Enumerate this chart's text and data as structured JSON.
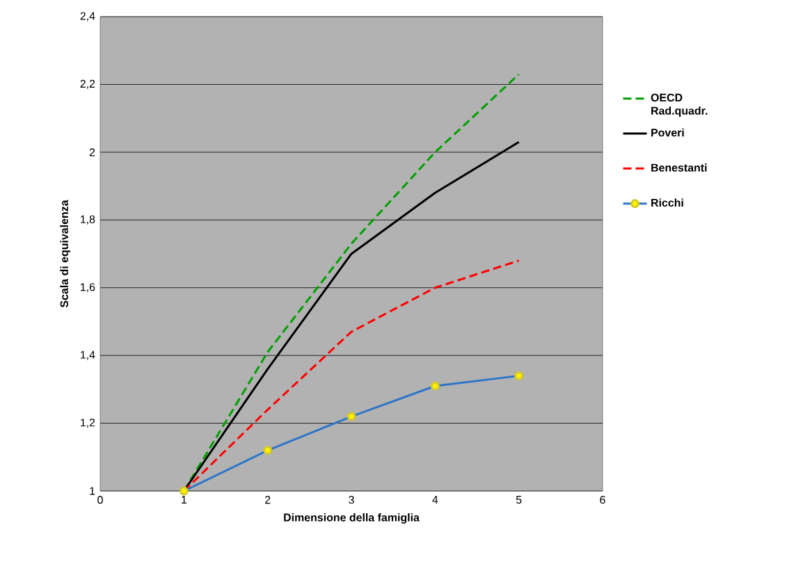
{
  "chart_data": {
    "type": "line",
    "xlabel": "Dimensione della famiglia",
    "ylabel": "Scala di equivalenza",
    "x": [
      1,
      2,
      3,
      4,
      5
    ],
    "series": [
      {
        "name": "OECD Rad.quadr.",
        "color": "#00a000",
        "values": [
          1,
          1.41,
          1.73,
          2,
          2.23
        ],
        "line_style": "dashed",
        "marker": "none"
      },
      {
        "name": "Poveri",
        "color": "#000000",
        "values": [
          1,
          1.36,
          1.7,
          1.88,
          2.03
        ],
        "line_style": "solid",
        "marker": "none"
      },
      {
        "name": "Benestanti",
        "color": "#ff0000",
        "values": [
          1,
          1.24,
          1.47,
          1.6,
          1.68
        ],
        "line_style": "dashed",
        "marker": "none"
      },
      {
        "name": "Ricchi",
        "color": "#2e75c8",
        "values": [
          1,
          1.12,
          1.22,
          1.31,
          1.34
        ],
        "line_style": "solid",
        "marker": "circle"
      }
    ],
    "xlim": [
      0,
      6
    ],
    "ylim": [
      1,
      2.4
    ],
    "xticks": [
      0,
      1,
      2,
      3,
      4,
      5,
      6
    ],
    "yticks": [
      1,
      {
        "value": 1.2,
        "label": "1,2"
      },
      {
        "value": 1.4,
        "label": "1,4"
      },
      {
        "value": 1.6,
        "label": "1,6"
      },
      {
        "value": 1.8,
        "label": "1,8"
      },
      2,
      {
        "value": 2.2,
        "label": "2,2"
      },
      {
        "value": 2.4,
        "label": "2,4"
      }
    ],
    "grid": "y",
    "legend": "right"
  }
}
